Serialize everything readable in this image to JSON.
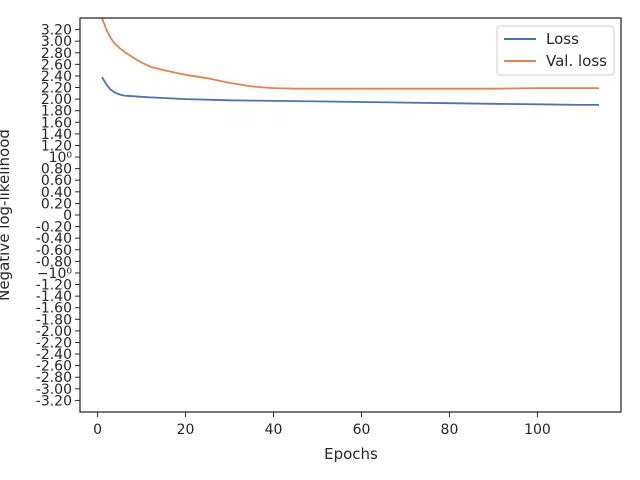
{
  "chart_data": {
    "type": "line",
    "title": "",
    "xlabel": "Epochs",
    "ylabel": "Negative log-likelihood",
    "xlim": [
      -4,
      119
    ],
    "ylim": [
      -3.4,
      3.4
    ],
    "xticks": [
      0,
      20,
      40,
      60,
      80,
      100
    ],
    "xtick_labels": [
      "0",
      "20",
      "40",
      "60",
      "80",
      "100"
    ],
    "yticks": [
      -3.2,
      -3.0,
      -2.8,
      -2.6,
      -2.4,
      -2.2,
      -2.0,
      -1.8,
      -1.6,
      -1.4,
      -1.2,
      -1.0,
      -0.8,
      -0.6,
      -0.4,
      -0.2,
      0.0,
      0.2,
      0.4,
      0.6,
      0.8,
      1.0,
      1.2,
      1.4,
      1.6,
      1.8,
      2.0,
      2.2,
      2.4,
      2.6,
      2.8,
      3.0,
      3.2
    ],
    "ytick_labels": [
      "-3.20",
      "-3.00",
      "-2.80",
      "-2.60",
      "-2.40",
      "-2.20",
      "-2.00",
      "-1.80",
      "-1.60",
      "-1.40",
      "-1.20",
      "−10⁰",
      "-0.80",
      "-0.60",
      "-0.40",
      "-0.20",
      "0",
      "0.20",
      "0.40",
      "0.60",
      "0.80",
      "10⁰",
      "1.20",
      "1.40",
      "1.60",
      "1.80",
      "2.00",
      "2.20",
      "2.40",
      "2.60",
      "2.80",
      "3.00",
      "3.20"
    ],
    "grid": false,
    "legend_position": "top-right",
    "series": [
      {
        "name": "Loss",
        "color": "#4c72b0",
        "x": [
          1,
          2,
          3,
          4,
          5,
          6,
          8,
          10,
          12,
          15,
          20,
          25,
          30,
          40,
          50,
          60,
          70,
          80,
          90,
          100,
          110,
          114
        ],
        "y": [
          2.38,
          2.25,
          2.16,
          2.11,
          2.08,
          2.06,
          2.05,
          2.04,
          2.03,
          2.02,
          2.0,
          1.99,
          1.98,
          1.97,
          1.96,
          1.95,
          1.94,
          1.93,
          1.92,
          1.91,
          1.9,
          1.9
        ]
      },
      {
        "name": "Val. loss",
        "color": "#dd8452",
        "x": [
          1,
          2,
          3,
          4,
          5,
          6,
          8,
          10,
          12,
          15,
          18,
          20,
          25,
          30,
          35,
          38,
          40,
          45,
          50,
          60,
          70,
          80,
          90,
          100,
          110,
          114
        ],
        "y": [
          3.4,
          3.2,
          3.05,
          2.95,
          2.88,
          2.82,
          2.72,
          2.63,
          2.56,
          2.5,
          2.45,
          2.42,
          2.36,
          2.28,
          2.22,
          2.2,
          2.19,
          2.18,
          2.18,
          2.18,
          2.18,
          2.18,
          2.18,
          2.19,
          2.19,
          2.19
        ]
      }
    ]
  }
}
